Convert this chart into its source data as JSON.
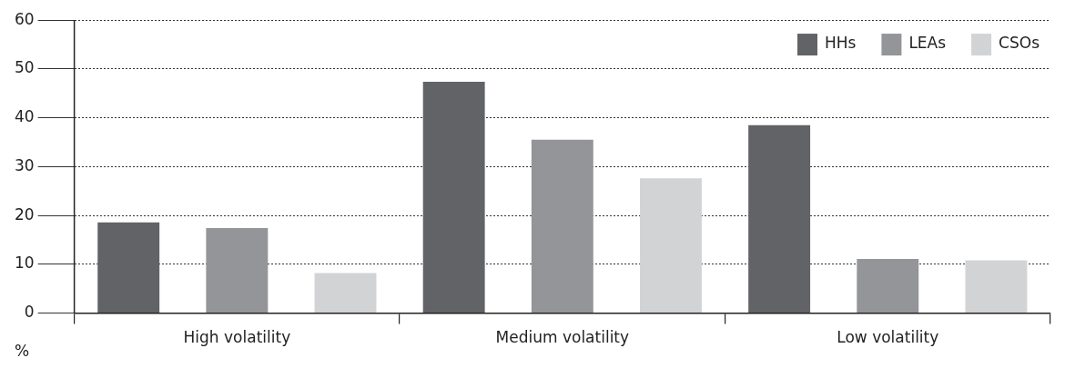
{
  "chart_data": {
    "type": "bar",
    "ylabel": "%",
    "categories": [
      "High volatility",
      "Medium volatility",
      "Low volatility"
    ],
    "series": [
      {
        "name": "HHs",
        "color": "#626366",
        "values": [
          18.6,
          47.4,
          38.5
        ]
      },
      {
        "name": "LEAs",
        "color": "#949598",
        "values": [
          17.4,
          35.5,
          11.1
        ]
      },
      {
        "name": "CSOs",
        "color": "#d2d3d5",
        "values": [
          8.2,
          27.6,
          10.8
        ]
      }
    ],
    "ylim": [
      0,
      60
    ],
    "yticks": [
      0,
      10,
      20,
      30,
      40,
      50,
      60
    ],
    "grid": "y",
    "legend": "top right"
  }
}
